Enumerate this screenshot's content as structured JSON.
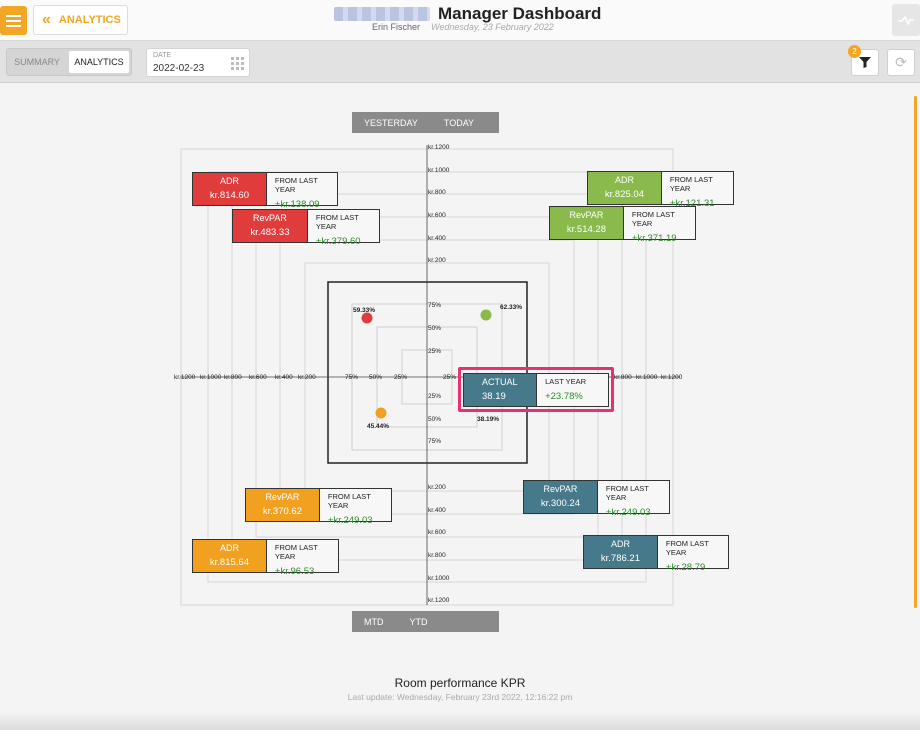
{
  "header": {
    "back_label": "ANALYTICS",
    "title": "Manager Dashboard",
    "user": "Erin Fischer",
    "date_text": "Wednesday, 23 February 2022"
  },
  "toolbar": {
    "tabs": [
      {
        "label": "SUMMARY",
        "active": false
      },
      {
        "label": "ANALYTICS",
        "active": true
      }
    ],
    "date_label": "DATE",
    "date_value": "2022-02-23",
    "filter_count": "2"
  },
  "top_tabs": {
    "left": "YESTERDAY",
    "right": "TODAY"
  },
  "bottom_tabs": {
    "left": "MTD",
    "right": "YTD"
  },
  "axis": {
    "vertical_ticks": [
      "kr.1200",
      "kr.1000",
      "kr.800",
      "kr.600",
      "kr.400",
      "kr.200"
    ],
    "horizontal_ticks_left": [
      "kr.1200",
      "kr.1000",
      "kr.800",
      "kr.600",
      "kr.400",
      "kr.200"
    ],
    "horizontal_ticks_right": [
      "kr.800",
      "kr.1000",
      "kr.1200"
    ],
    "pct_ticks": [
      "75%",
      "50%",
      "25%"
    ]
  },
  "occupancy": {
    "yesterday": "59.33%",
    "today": "62.33%",
    "mtd": "45.44%",
    "ytd": "38.19%"
  },
  "kpis": {
    "yesterday_adr": {
      "label": "ADR",
      "value": "kr.814.60",
      "cmp_label": "FROM LAST YEAR",
      "cmp_value": "+kr.138.09"
    },
    "yesterday_revpar": {
      "label": "RevPAR",
      "value": "kr.483.33",
      "cmp_label": "FROM LAST YEAR",
      "cmp_value": "+kr.379.60"
    },
    "today_adr": {
      "label": "ADR",
      "value": "kr.825.04",
      "cmp_label": "FROM LAST YEAR",
      "cmp_value": "+kr.121.31"
    },
    "today_revpar": {
      "label": "RevPAR",
      "value": "kr.514.28",
      "cmp_label": "FROM LAST YEAR",
      "cmp_value": "+kr.371.19"
    },
    "mtd_revpar": {
      "label": "RevPAR",
      "value": "kr.370.62",
      "cmp_label": "FROM LAST YEAR",
      "cmp_value": "+kr.249.03"
    },
    "mtd_adr": {
      "label": "ADR",
      "value": "kr.815.64",
      "cmp_label": "FROM LAST YEAR",
      "cmp_value": "+kr.96.53"
    },
    "ytd_revpar": {
      "label": "RevPAR",
      "value": "kr.300.24",
      "cmp_label": "FROM LAST YEAR",
      "cmp_value": "+kr.249.03"
    },
    "ytd_adr": {
      "label": "ADR",
      "value": "kr.786.21",
      "cmp_label": "FROM LAST YEAR",
      "cmp_value": "+kr.28.79"
    },
    "actual": {
      "label": "ACTUAL",
      "value": "38.19",
      "cmp_label": "LAST YEAR",
      "cmp_value": "+23.78%"
    }
  },
  "colors": {
    "yesterday": "#e03c3c",
    "today": "#8ab94c",
    "mtd": "#f2a020",
    "ytd": "#467a8a",
    "accent": "#f2a623",
    "highlight": "#e8316e"
  },
  "footer": {
    "title": "Room performance KPR",
    "last_update": "Last update: Wednesday, February 23rd 2022, 12:16:22 pm"
  }
}
